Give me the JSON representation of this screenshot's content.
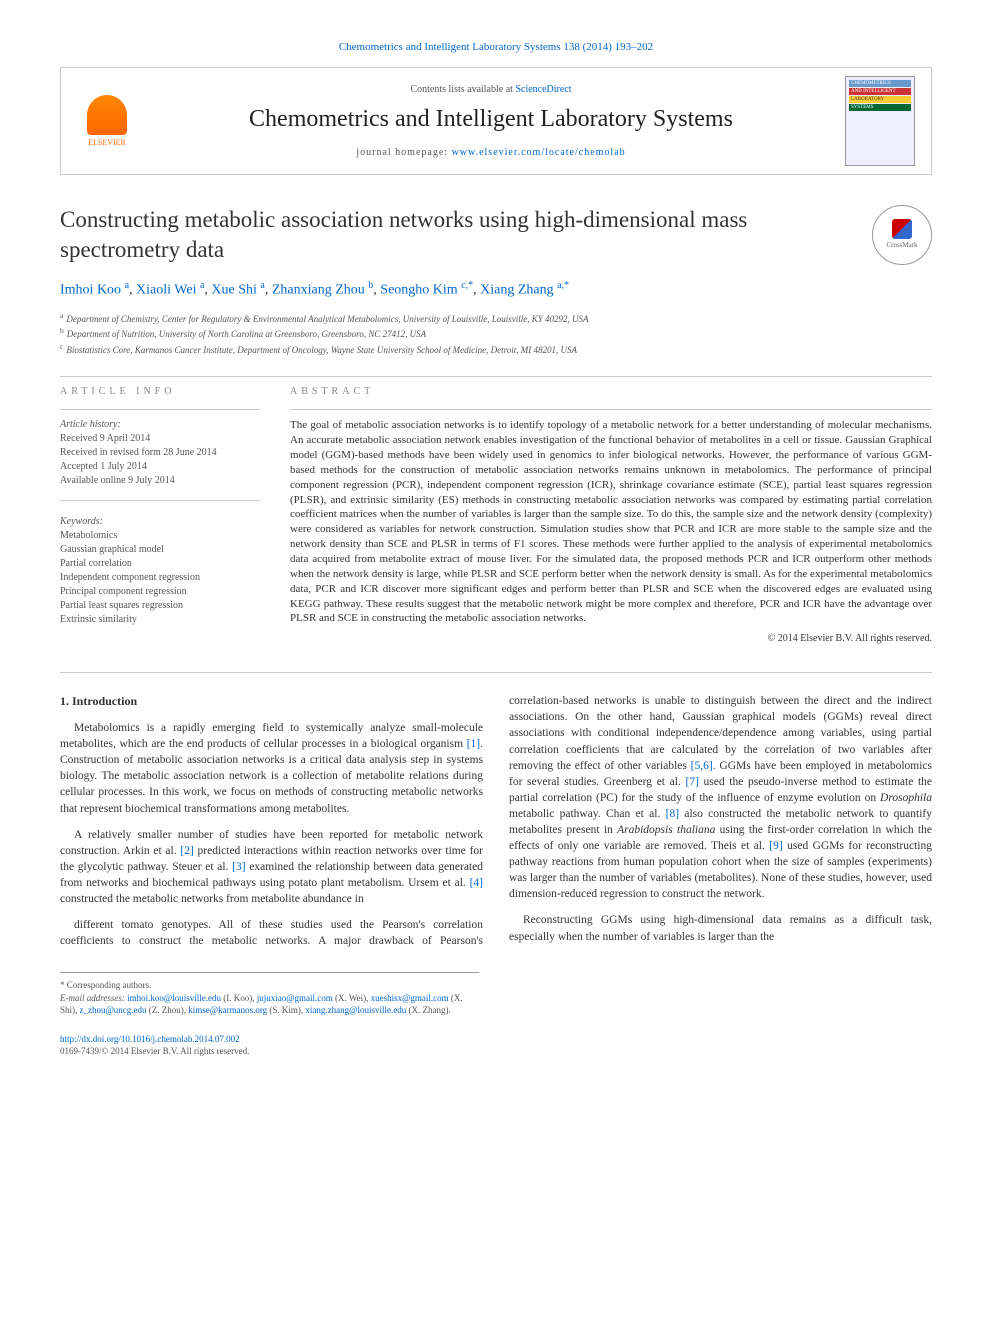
{
  "header": {
    "citation_journal": "Chemometrics and Intelligent Laboratory Systems 138 (2014) 193–202",
    "contents_line_prefix": "Contents lists available at ",
    "contents_line_link": "ScienceDirect",
    "journal_name": "Chemometrics and Intelligent Laboratory Systems",
    "homepage_prefix": "journal homepage: ",
    "homepage_url": "www.elsevier.com/locate/chemolab",
    "publisher_name": "ELSEVIER",
    "cover_labels": [
      "CHEMOMETRICS",
      "AND INTELLIGENT",
      "LABORATORY",
      "SYSTEMS"
    ],
    "crossmark_label": "CrossMark"
  },
  "article": {
    "title": "Constructing metabolic association networks using high-dimensional mass spectrometry data",
    "authors_html": "Imhoi Koo <sup>a</sup>, Xiaoli Wei <sup>a</sup>, Xue Shi <sup>a</sup>, Zhanxiang Zhou <sup>b</sup>, Seongho Kim <sup>c,*</sup>, Xiang Zhang <sup>a,*</sup>",
    "affiliations": [
      {
        "key": "a",
        "text": "Department of Chemistry, Center for Regulatory & Environmental Analytical Metabolomics, University of Louisville, Louisville, KY 40292, USA"
      },
      {
        "key": "b",
        "text": "Department of Nutrition, University of North Carolina at Greensboro, Greensboro, NC 27412, USA"
      },
      {
        "key": "c",
        "text": "Biostatistics Core, Karmanos Cancer Institute, Department of Oncology, Wayne State University School of Medicine, Detroit, MI 48201, USA"
      }
    ]
  },
  "info": {
    "heading": "article info",
    "history_label": "Article history:",
    "history": [
      "Received 9 April 2014",
      "Received in revised form 28 June 2014",
      "Accepted 1 July 2014",
      "Available online 9 July 2014"
    ],
    "keywords_label": "Keywords:",
    "keywords": [
      "Metabolomics",
      "Gaussian graphical model",
      "Partial correlation",
      "Independent component regression",
      "Principal component regression",
      "Partial least squares regression",
      "Extrinsic similarity"
    ]
  },
  "abstract": {
    "heading": "abstract",
    "text": "The goal of metabolic association networks is to identify topology of a metabolic network for a better understanding of molecular mechanisms. An accurate metabolic association network enables investigation of the functional behavior of metabolites in a cell or tissue. Gaussian Graphical model (GGM)-based methods have been widely used in genomics to infer biological networks. However, the performance of various GGM-based methods for the construction of metabolic association networks remains unknown in metabolomics. The performance of principal component regression (PCR), independent component regression (ICR), shrinkage covariance estimate (SCE), partial least squares regression (PLSR), and extrinsic similarity (ES) methods in constructing metabolic association networks was compared by estimating partial correlation coefficient matrices when the number of variables is larger than the sample size. To do this, the sample size and the network density (complexity) were considered as variables for network construction. Simulation studies show that PCR and ICR are more stable to the sample size and the network density than SCE and PLSR in terms of F1 scores. These methods were further applied to the analysis of experimental metabolomics data acquired from metabolite extract of mouse liver. For the simulated data, the proposed methods PCR and ICR outperform other methods when the network density is large, while PLSR and SCE perform better when the network density is small. As for the experimental metabolomics data, PCR and ICR discover more significant edges and perform better than PLSR and SCE when the discovered edges are evaluated using KEGG pathway. These results suggest that the metabolic network might be more complex and therefore, PCR and ICR have the advantage over PLSR and SCE in constructing the metabolic association networks.",
    "copyright": "© 2014 Elsevier B.V. All rights reserved."
  },
  "body": {
    "section_heading": "1. Introduction",
    "p1": "Metabolomics is a rapidly emerging field to systemically analyze small-molecule metabolites, which are the end products of cellular processes in a biological organism [1]. Construction of metabolic association networks is a critical data analysis step in systems biology. The metabolic association network is a collection of metabolite relations during cellular processes. In this work, we focus on methods of constructing metabolic networks that represent biochemical transformations among metabolites.",
    "p2": "A relatively smaller number of studies have been reported for metabolic network construction. Arkin et al. [2] predicted interactions within reaction networks over time for the glycolytic pathway. Steuer et al. [3] examined the relationship between data generated from networks and biochemical pathways using potato plant metabolism. Ursem et al. [4] constructed the metabolic networks from metabolite abundance in",
    "p3": "different tomato genotypes. All of these studies used the Pearson's correlation coefficients to construct the metabolic networks. A major drawback of Pearson's correlation-based networks is unable to distinguish between the direct and the indirect associations. On the other hand, Gaussian graphical models (GGMs) reveal direct associations with conditional independence/dependence among variables, using partial correlation coefficients that are calculated by the correlation of two variables after removing the effect of other variables [5,6]. GGMs have been employed in metabolomics for several studies. Greenberg et al. [7] used the pseudo-inverse method to estimate the partial correlation (PC) for the study of the influence of enzyme evolution on Drosophila metabolic pathway. Chan et al. [8] also constructed the metabolic network to quantify metabolites present in Arabidopsis thaliana using the first-order correlation in which the effects of only one variable are removed. Theis et al. [9] used GGMs for reconstructing pathway reactions from human population cohort when the size of samples (experiments) was larger than the number of variables (metabolites). None of these studies, however, used dimension-reduced regression to construct the network.",
    "p4": "Reconstructing GGMs using high-dimensional data remains as a difficult task, especially when the number of variables is larger than the",
    "refs": {
      "r1": "[1]",
      "r2": "[2]",
      "r3": "[3]",
      "r4": "[4]",
      "r56": "[5,6]",
      "r7": "[7]",
      "r8": "[8]",
      "r9": "[9]"
    }
  },
  "footnotes": {
    "corresponding": "* Corresponding authors.",
    "emails_label": "E-mail addresses:",
    "emails": [
      {
        "email": "imhoi.koo@louisville.edu",
        "who": " (I. Koo), "
      },
      {
        "email": "jujuxiao@gmail.com",
        "who": " (X. Wei), "
      },
      {
        "email": "xueshisx@gmail.com",
        "who": " (X. Shi), "
      },
      {
        "email": "z_zhou@uncg.edu",
        "who": " (Z. Zhou), "
      },
      {
        "email": "kimse@karmanos.org",
        "who": " (S. Kim), "
      },
      {
        "email": "xiang.zhang@louisville.edu",
        "who": " (X. Zhang)."
      }
    ]
  },
  "footer": {
    "doi": "http://dx.doi.org/10.1016/j.chemolab.2014.07.002",
    "issn_copyright": "0169-7439/© 2014 Elsevier B.V. All rights reserved."
  },
  "colors": {
    "link": "#0066cc",
    "text": "#333333",
    "muted": "#777777",
    "rule": "#cccccc",
    "elsevier_orange": "#ff6600"
  }
}
